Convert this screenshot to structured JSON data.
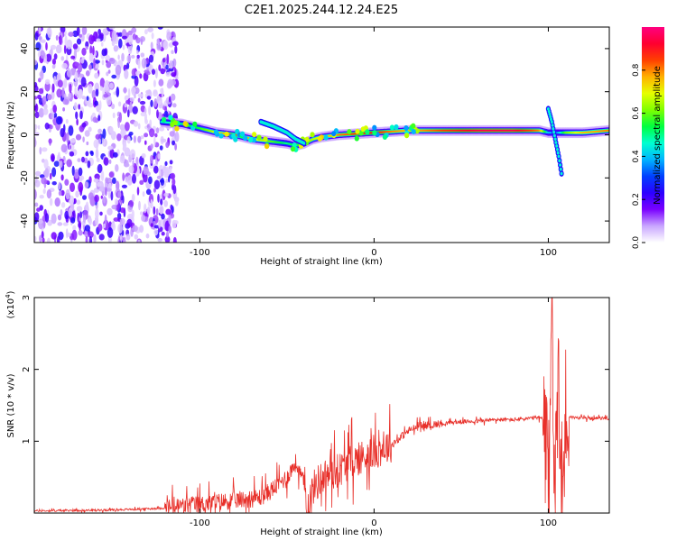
{
  "title": "C2E1.2025.244.12.24.E25",
  "chart_data": [
    {
      "type": "heatmap",
      "name": "spectrogram",
      "xlabel": "Height of straight line (km)",
      "ylabel": "Frequency (Hz)",
      "xlim": [
        -195,
        135
      ],
      "ylim": [
        -50,
        50
      ],
      "xticks": [
        -100,
        0,
        100
      ],
      "yticks": [
        -40,
        -20,
        0,
        20,
        40
      ],
      "xtick_labels": [
        "-100",
        "0",
        "100"
      ],
      "ytick_labels": [
        "-40",
        "-20",
        "0",
        "20",
        "40"
      ],
      "colorbar": {
        "label": "Normalized spectral amplitude",
        "range": [
          0,
          1
        ],
        "ticks": [
          0.0,
          0.2,
          0.4,
          0.6,
          0.8
        ],
        "tick_labels": [
          "0.0",
          "0.2",
          "0.4",
          "0.6",
          "0.8"
        ],
        "colormap": [
          "#ffffff",
          "#c9a6ff",
          "#7a00ff",
          "#2b00ff",
          "#0040ff",
          "#00b4ff",
          "#00ffd0",
          "#00ff40",
          "#7fff00",
          "#e6ff00",
          "#ffb000",
          "#ff4000",
          "#ff0030",
          "#ff0080"
        ]
      },
      "noise_region_x": [
        -195,
        -113
      ],
      "ridge": {
        "x": [
          -122,
          -110,
          -100,
          -90,
          -80,
          -70,
          -60,
          -50,
          -45,
          -40,
          -35,
          -30,
          -20,
          -10,
          0,
          10,
          20,
          40,
          60,
          80,
          95,
          100,
          105,
          110,
          120,
          135
        ],
        "freq": [
          6,
          5,
          3,
          1,
          0,
          -2,
          -3,
          -4,
          -5,
          -4,
          -2,
          -1,
          0,
          0.5,
          1,
          1.5,
          2,
          2,
          2,
          2,
          2,
          1,
          1,
          1,
          1,
          2
        ],
        "amplitude": [
          0.45,
          0.5,
          0.55,
          0.7,
          0.85,
          0.75,
          0.6,
          0.5,
          0.55,
          0.6,
          0.65,
          0.7,
          0.8,
          0.85,
          0.9,
          0.8,
          0.75,
          0.85,
          0.95,
          0.95,
          0.8,
          0.4,
          0.35,
          0.6,
          0.75,
          0.8
        ]
      },
      "branches": [
        {
          "x": [
            -65,
            -58,
            -50,
            -45,
            -40
          ],
          "freq": [
            6,
            4,
            1,
            -2,
            -4
          ]
        },
        {
          "x": [
            100,
            102,
            104,
            106,
            108
          ],
          "freq": [
            12,
            6,
            -2,
            -10,
            -20
          ]
        }
      ]
    },
    {
      "type": "line",
      "name": "snr",
      "xlabel": "Height of straight line (km)",
      "ylabel": "SNR (10 * v/v)",
      "scale_label": "(x10",
      "scale_exponent": "4",
      "color": "#e8302a",
      "xlim": [
        -195,
        135
      ],
      "ylim": [
        0,
        3
      ],
      "xticks": [
        -100,
        0,
        100
      ],
      "yticks": [
        1,
        2,
        3
      ],
      "xtick_labels": [
        "-100",
        "0",
        "100"
      ],
      "ytick_labels": [
        "1",
        "2",
        "3"
      ],
      "envelope": {
        "x": [
          -195,
          -160,
          -140,
          -120,
          -110,
          -100,
          -90,
          -80,
          -70,
          -65,
          -60,
          -50,
          -45,
          -40,
          -38,
          -35,
          -30,
          -25,
          -20,
          -15,
          -10,
          -5,
          0,
          5,
          10,
          15,
          20,
          25,
          30,
          40,
          50,
          60,
          70,
          80,
          90,
          95,
          97,
          100,
          102,
          104,
          106,
          108,
          110,
          115,
          120,
          135
        ],
        "y": [
          0.03,
          0.04,
          0.05,
          0.07,
          0.1,
          0.12,
          0.15,
          0.18,
          0.2,
          0.22,
          0.3,
          0.5,
          0.7,
          0.4,
          0.1,
          0.35,
          0.5,
          0.55,
          0.6,
          0.7,
          0.75,
          0.8,
          0.85,
          0.9,
          0.95,
          1.05,
          1.15,
          1.2,
          1.22,
          1.25,
          1.27,
          1.28,
          1.3,
          1.3,
          1.32,
          1.33,
          1.3,
          0.2,
          3.0,
          0.1,
          2.2,
          0.15,
          1.35,
          1.33,
          1.32,
          1.32
        ]
      },
      "noise_amplitude": [
        {
          "from": -195,
          "to": -120,
          "amp": 0.02
        },
        {
          "from": -120,
          "to": -40,
          "amp": 0.18
        },
        {
          "from": -40,
          "to": 10,
          "amp": 0.35
        },
        {
          "from": 10,
          "to": 40,
          "amp": 0.08
        },
        {
          "from": 40,
          "to": 97,
          "amp": 0.04
        },
        {
          "from": 97,
          "to": 112,
          "amp": 0.9
        },
        {
          "from": 112,
          "to": 135,
          "amp": 0.03
        }
      ]
    }
  ]
}
